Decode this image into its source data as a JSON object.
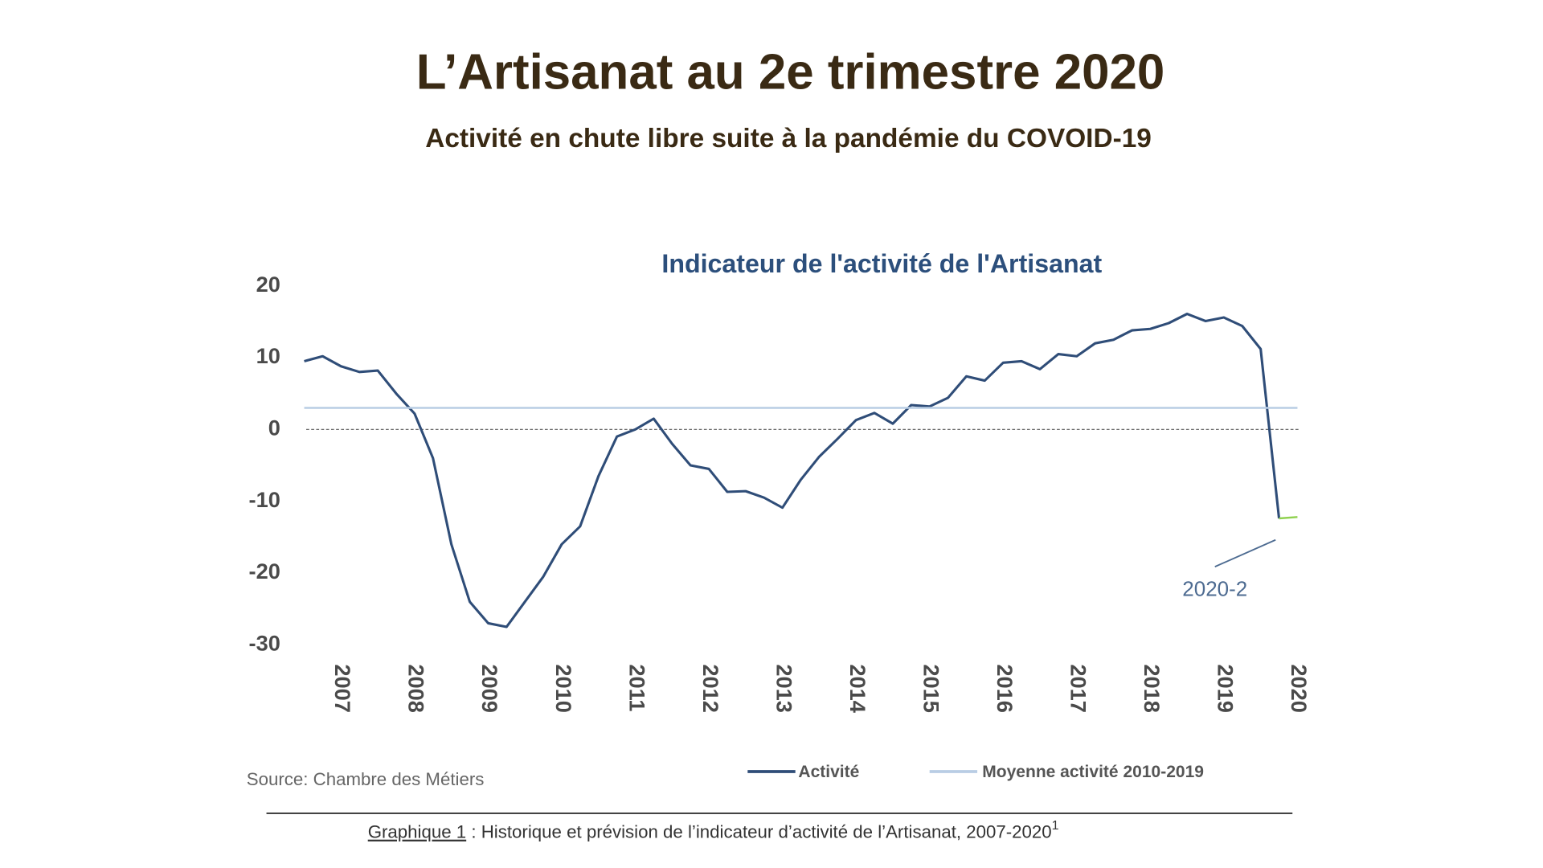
{
  "header": {
    "title": "L’Artisanat au 2e trimestre 2020",
    "subtitle": "Activité en chute libre suite à la pandémie du COVOID-19"
  },
  "chart_data": {
    "type": "line",
    "title": "Indicateur de l'activité de l'Artisanat",
    "series": [
      {
        "name": "Activité",
        "color": "#2f4d78",
        "x": [
          2006.5,
          2006.75,
          2007,
          2007.25,
          2007.5,
          2007.75,
          2008,
          2008.25,
          2008.5,
          2008.75,
          2009,
          2009.25,
          2009.5,
          2009.75,
          2010,
          2010.25,
          2010.5,
          2010.75,
          2011,
          2011.25,
          2011.5,
          2011.75,
          2012,
          2012.25,
          2012.5,
          2012.75,
          2013,
          2013.25,
          2013.5,
          2013.75,
          2014,
          2014.25,
          2014.5,
          2014.75,
          2015,
          2015.25,
          2015.5,
          2015.75,
          2016,
          2016.25,
          2016.5,
          2016.75,
          2017,
          2017.25,
          2017.5,
          2017.75,
          2018,
          2018.25,
          2018.5,
          2018.75,
          2019,
          2019.25,
          2019.5,
          2019.75
        ],
        "values": [
          9.5,
          10.2,
          8.8,
          8,
          8.2,
          5,
          2.2,
          -4,
          -16,
          -24,
          -27,
          -27.5,
          -24,
          -20.5,
          -16,
          -13.5,
          -6.5,
          -1,
          0,
          1.5,
          -2,
          -5,
          -5.5,
          -8.7,
          -8.6,
          -9.5,
          -10.9,
          -7,
          -3.8,
          -1.3,
          1.3,
          2.3,
          0.8,
          3.4,
          3.2,
          4.4,
          7.4,
          6.8,
          9.3,
          9.5,
          8.4,
          10.5,
          10.2,
          12,
          12.5,
          13.8,
          14,
          14.8,
          16.1,
          15.1,
          15.6,
          14.4,
          11.2,
          -12.4
        ]
      },
      {
        "name": "Moyenne activité 2010-2019",
        "color": "#b9cde4",
        "x": [
          2006.5,
          2020
        ],
        "values": [
          3,
          3
        ]
      },
      {
        "color": "#8fd14f",
        "x": [
          2019.75,
          2020
        ],
        "values": [
          -12.4,
          -12.2
        ]
      }
    ],
    "xlim": [
      2006.5,
      2020
    ],
    "xticks": [
      2007,
      2008,
      2009,
      2010,
      2011,
      2012,
      2013,
      2014,
      2015,
      2016,
      2017,
      2018,
      2019,
      2020
    ],
    "ylim": [
      -30,
      20
    ],
    "yticks": [
      20,
      10,
      0,
      -10,
      -20,
      -30
    ],
    "zero_line": true,
    "annotation": "2020-2",
    "source": "Source: Chambre des Métiers",
    "caption_label": "Graphique 1",
    "caption_text": " : Historique et prévision de l’indicateur d’activité de l’Artisanat, 2007-2020",
    "caption_note": "1"
  }
}
